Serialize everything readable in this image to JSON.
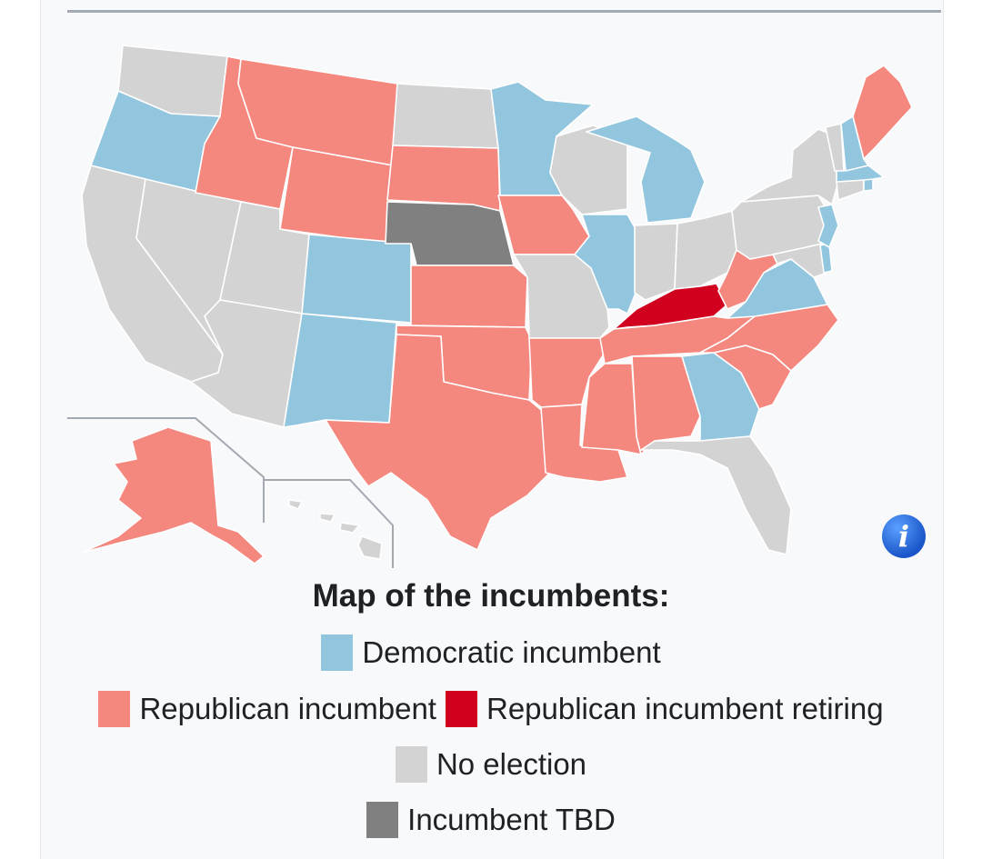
{
  "caption": "Map of the incumbents:",
  "legend": {
    "democratic": {
      "label": "Democratic incumbent",
      "color": "#92c5de"
    },
    "republican": {
      "label": "Republican incumbent",
      "color": "#f4877e"
    },
    "republican_retiring": {
      "label": "Republican incumbent retiring",
      "color": "#d1001f"
    },
    "no_election": {
      "label": "No election",
      "color": "#d3d3d3"
    },
    "tbd": {
      "label": "Incumbent TBD",
      "color": "#808080"
    }
  },
  "info_icon": "info-icon",
  "states": {
    "WA": "no_election",
    "OR": "democratic",
    "CA": "no_election",
    "NV": "no_election",
    "ID": "republican",
    "MT": "republican",
    "WY": "republican",
    "UT": "no_election",
    "AZ": "no_election",
    "CO": "democratic",
    "NM": "democratic",
    "ND": "no_election",
    "SD": "republican",
    "NE": "tbd",
    "KS": "republican",
    "OK": "republican",
    "TX": "republican",
    "MN": "democratic",
    "IA": "republican",
    "MO": "no_election",
    "AR": "republican",
    "LA": "republican",
    "WI": "no_election",
    "IL": "democratic",
    "MI": "democratic",
    "IN": "no_election",
    "OH": "no_election",
    "KY": "republican_retiring",
    "TN": "republican",
    "MS": "republican",
    "AL": "republican",
    "GA": "democratic",
    "FL": "no_election",
    "SC": "republican",
    "NC": "republican",
    "VA": "democratic",
    "WV": "republican",
    "PA": "no_election",
    "NY": "no_election",
    "NJ": "democratic",
    "DE": "democratic",
    "MD": "no_election",
    "CT": "no_election",
    "RI": "democratic",
    "MA": "democratic",
    "VT": "no_election",
    "NH": "democratic",
    "ME": "republican",
    "AK": "republican",
    "HI": "no_election"
  }
}
